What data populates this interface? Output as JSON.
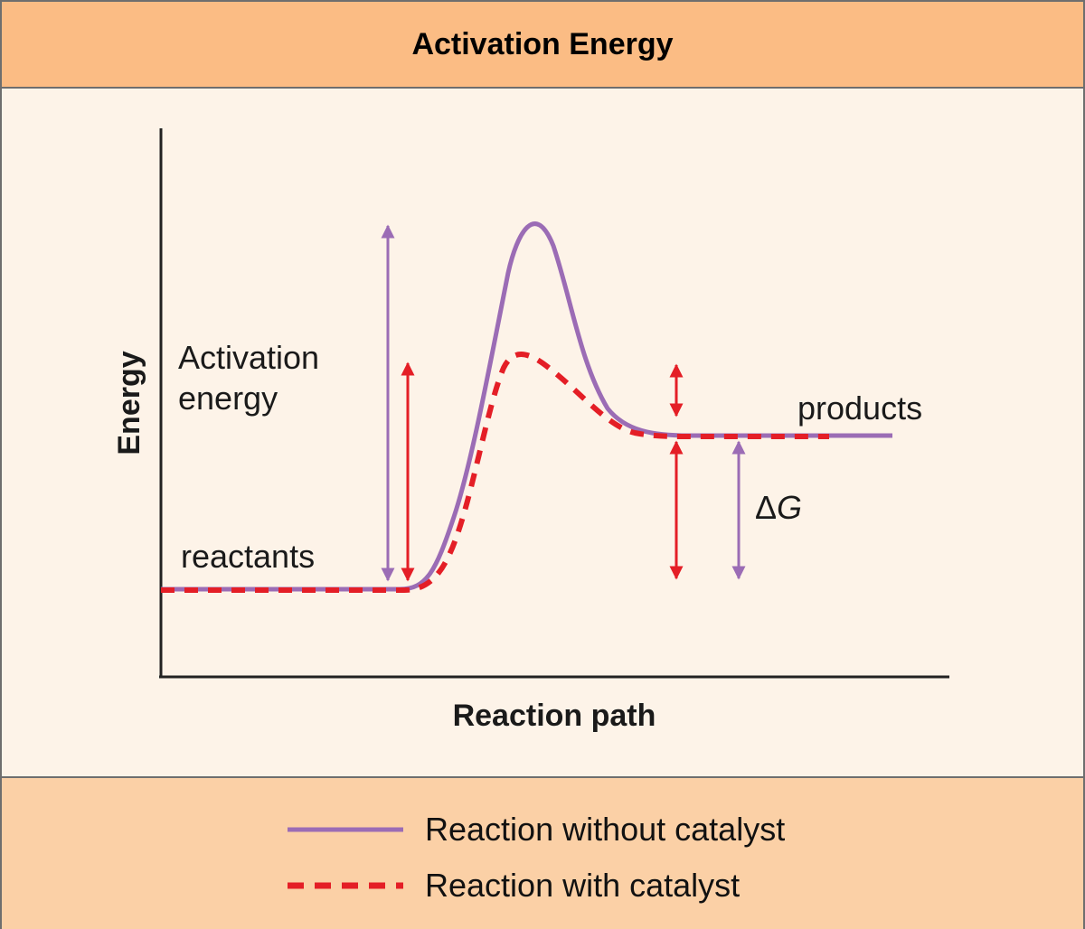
{
  "header": {
    "title": "Activation Energy"
  },
  "axes": {
    "ylabel": "Energy",
    "xlabel": "Reaction path"
  },
  "labels": {
    "activation_line1": "Activation",
    "activation_line2": "energy",
    "reactants": "reactants",
    "products": "products",
    "delta_g_symbol": "Δ",
    "delta_g_var": "G"
  },
  "legend": [
    {
      "label": "Reaction without catalyst",
      "style": "solid",
      "color": "#9b6cb5"
    },
    {
      "label": "Reaction with catalyst",
      "style": "dashed",
      "color": "#e41e26"
    }
  ],
  "colors": {
    "uncatalyzed": "#9b6cb5",
    "catalyzed": "#e41e26",
    "header_bg": "#fbbc84",
    "footer_bg": "#fbd0a6",
    "panel_bg": "#fdf3e8"
  }
}
